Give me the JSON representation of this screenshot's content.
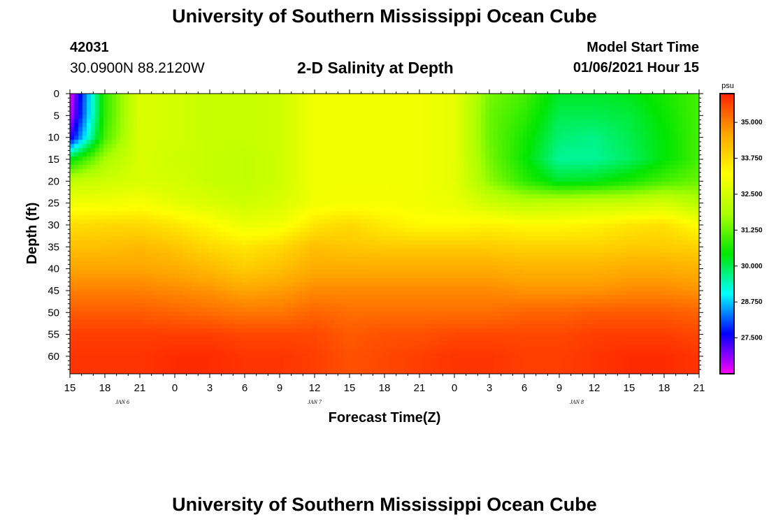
{
  "header": {
    "title": "University of Southern Mississippi Ocean Cube",
    "station_id": "42031",
    "station_location": "30.0900N 88.2120W",
    "chart_title": "2-D Salinity at Depth",
    "model_start_label": "Model Start Time",
    "model_start_value": "01/06/2021 Hour 15"
  },
  "footer": {
    "title": "University of Southern Mississippi Ocean Cube"
  },
  "colors": {
    "scale": [
      "#ff00ff",
      "#0000ff",
      "#00ffff",
      "#00e600",
      "#aaff00",
      "#ffff00",
      "#ffa500",
      "#ff2200"
    ]
  },
  "chart_data": {
    "type": "heatmap",
    "title": "2-D Salinity at Depth",
    "xlabel": "Forecast Time(Z)",
    "ylabel": "Depth (ft)",
    "units": "psu",
    "x_range_hours": [
      0,
      54
    ],
    "y_range_ft": [
      0,
      64
    ],
    "xticks": [
      "15",
      "18",
      "21",
      "0",
      "3",
      "6",
      "9",
      "12",
      "15",
      "18",
      "21",
      "0",
      "3",
      "6",
      "9",
      "12",
      "15",
      "18",
      "21"
    ],
    "date_labels": [
      {
        "text": "JAN 6",
        "hour": 4.5
      },
      {
        "text": "JAN 7",
        "hour": 21
      },
      {
        "text": "JAN 8",
        "hour": 43.5
      }
    ],
    "yticks": [
      0,
      5,
      10,
      15,
      20,
      25,
      30,
      35,
      40,
      45,
      50,
      55,
      60
    ],
    "colorbar": {
      "min": 26.25,
      "max": 36.0,
      "labels": [
        "35.000",
        "33.750",
        "32.500",
        "31.250",
        "30.000",
        "28.750",
        "27.500"
      ]
    },
    "time_hours": [
      0,
      3,
      6,
      9,
      12,
      15,
      18,
      21,
      24,
      27,
      30,
      33,
      36,
      39,
      42,
      45,
      48,
      51,
      54
    ],
    "depths_ft": [
      0,
      5,
      10,
      15,
      20,
      25,
      30,
      35,
      40,
      45,
      50,
      55,
      60,
      64
    ],
    "salinity_psu": [
      [
        26.3,
        30.8,
        32.6,
        32.5,
        32.3,
        32.3,
        32.4,
        33.0,
        33.0,
        33.0,
        33.0,
        32.8,
        31.4,
        31.0,
        30.2,
        30.2,
        30.3,
        30.6,
        31.0
      ],
      [
        26.5,
        30.8,
        32.6,
        32.5,
        32.3,
        32.3,
        32.4,
        33.0,
        33.0,
        33.0,
        33.0,
        32.8,
        31.3,
        30.8,
        30.0,
        30.0,
        30.1,
        30.5,
        31.0
      ],
      [
        27.3,
        31.0,
        32.6,
        32.5,
        32.3,
        32.3,
        32.4,
        33.0,
        33.0,
        33.0,
        33.0,
        32.8,
        31.3,
        30.6,
        29.8,
        29.7,
        30.0,
        30.4,
        31.0
      ],
      [
        30.3,
        31.8,
        32.6,
        32.4,
        32.3,
        32.2,
        32.4,
        33.0,
        33.0,
        33.0,
        33.0,
        32.8,
        31.4,
        30.5,
        29.6,
        29.6,
        29.9,
        30.4,
        31.0
      ],
      [
        32.2,
        32.4,
        32.6,
        32.5,
        32.3,
        32.2,
        32.4,
        33.0,
        33.0,
        33.0,
        33.0,
        32.8,
        31.6,
        30.8,
        30.2,
        30.3,
        30.6,
        31.0,
        31.3
      ],
      [
        33.0,
        33.0,
        33.1,
        32.8,
        32.6,
        32.4,
        32.6,
        33.0,
        33.1,
        33.1,
        33.0,
        32.9,
        32.4,
        32.1,
        32.2,
        32.3,
        32.3,
        32.5,
        32.0
      ],
      [
        33.7,
        33.8,
        33.8,
        33.6,
        33.3,
        32.9,
        33.0,
        33.6,
        33.8,
        33.5,
        33.3,
        33.3,
        33.4,
        33.3,
        33.3,
        33.4,
        33.6,
        33.7,
        33.2
      ],
      [
        34.2,
        34.2,
        34.3,
        34.1,
        33.8,
        33.6,
        33.8,
        34.2,
        34.1,
        34.0,
        34.0,
        34.0,
        34.0,
        33.9,
        33.9,
        33.9,
        34.0,
        34.0,
        33.9
      ],
      [
        34.6,
        34.6,
        34.6,
        34.5,
        34.3,
        34.0,
        34.2,
        34.5,
        34.5,
        34.5,
        34.5,
        34.5,
        34.5,
        34.4,
        34.4,
        34.4,
        34.5,
        34.5,
        34.4
      ],
      [
        35.0,
        35.0,
        35.0,
        34.9,
        34.8,
        34.6,
        34.7,
        34.9,
        34.9,
        34.9,
        34.9,
        34.9,
        34.9,
        34.8,
        34.8,
        34.8,
        34.9,
        34.9,
        34.8
      ],
      [
        35.4,
        35.4,
        35.4,
        35.3,
        35.2,
        35.1,
        35.1,
        35.3,
        35.2,
        35.2,
        35.2,
        35.2,
        35.2,
        35.3,
        35.3,
        35.4,
        35.4,
        35.4,
        35.3
      ],
      [
        35.7,
        35.7,
        35.7,
        35.7,
        35.7,
        35.6,
        35.6,
        35.6,
        35.4,
        35.5,
        35.5,
        35.6,
        35.6,
        35.6,
        35.6,
        35.7,
        35.7,
        35.7,
        35.6
      ],
      [
        35.8,
        35.8,
        35.8,
        35.9,
        35.9,
        35.8,
        35.8,
        35.7,
        35.5,
        35.6,
        35.7,
        35.8,
        35.8,
        35.7,
        35.7,
        35.8,
        35.9,
        35.9,
        35.8
      ],
      [
        35.8,
        35.8,
        35.8,
        35.9,
        35.9,
        35.8,
        35.8,
        35.7,
        35.5,
        35.6,
        35.7,
        35.8,
        35.8,
        35.7,
        35.7,
        35.8,
        35.9,
        35.9,
        35.8
      ]
    ]
  }
}
